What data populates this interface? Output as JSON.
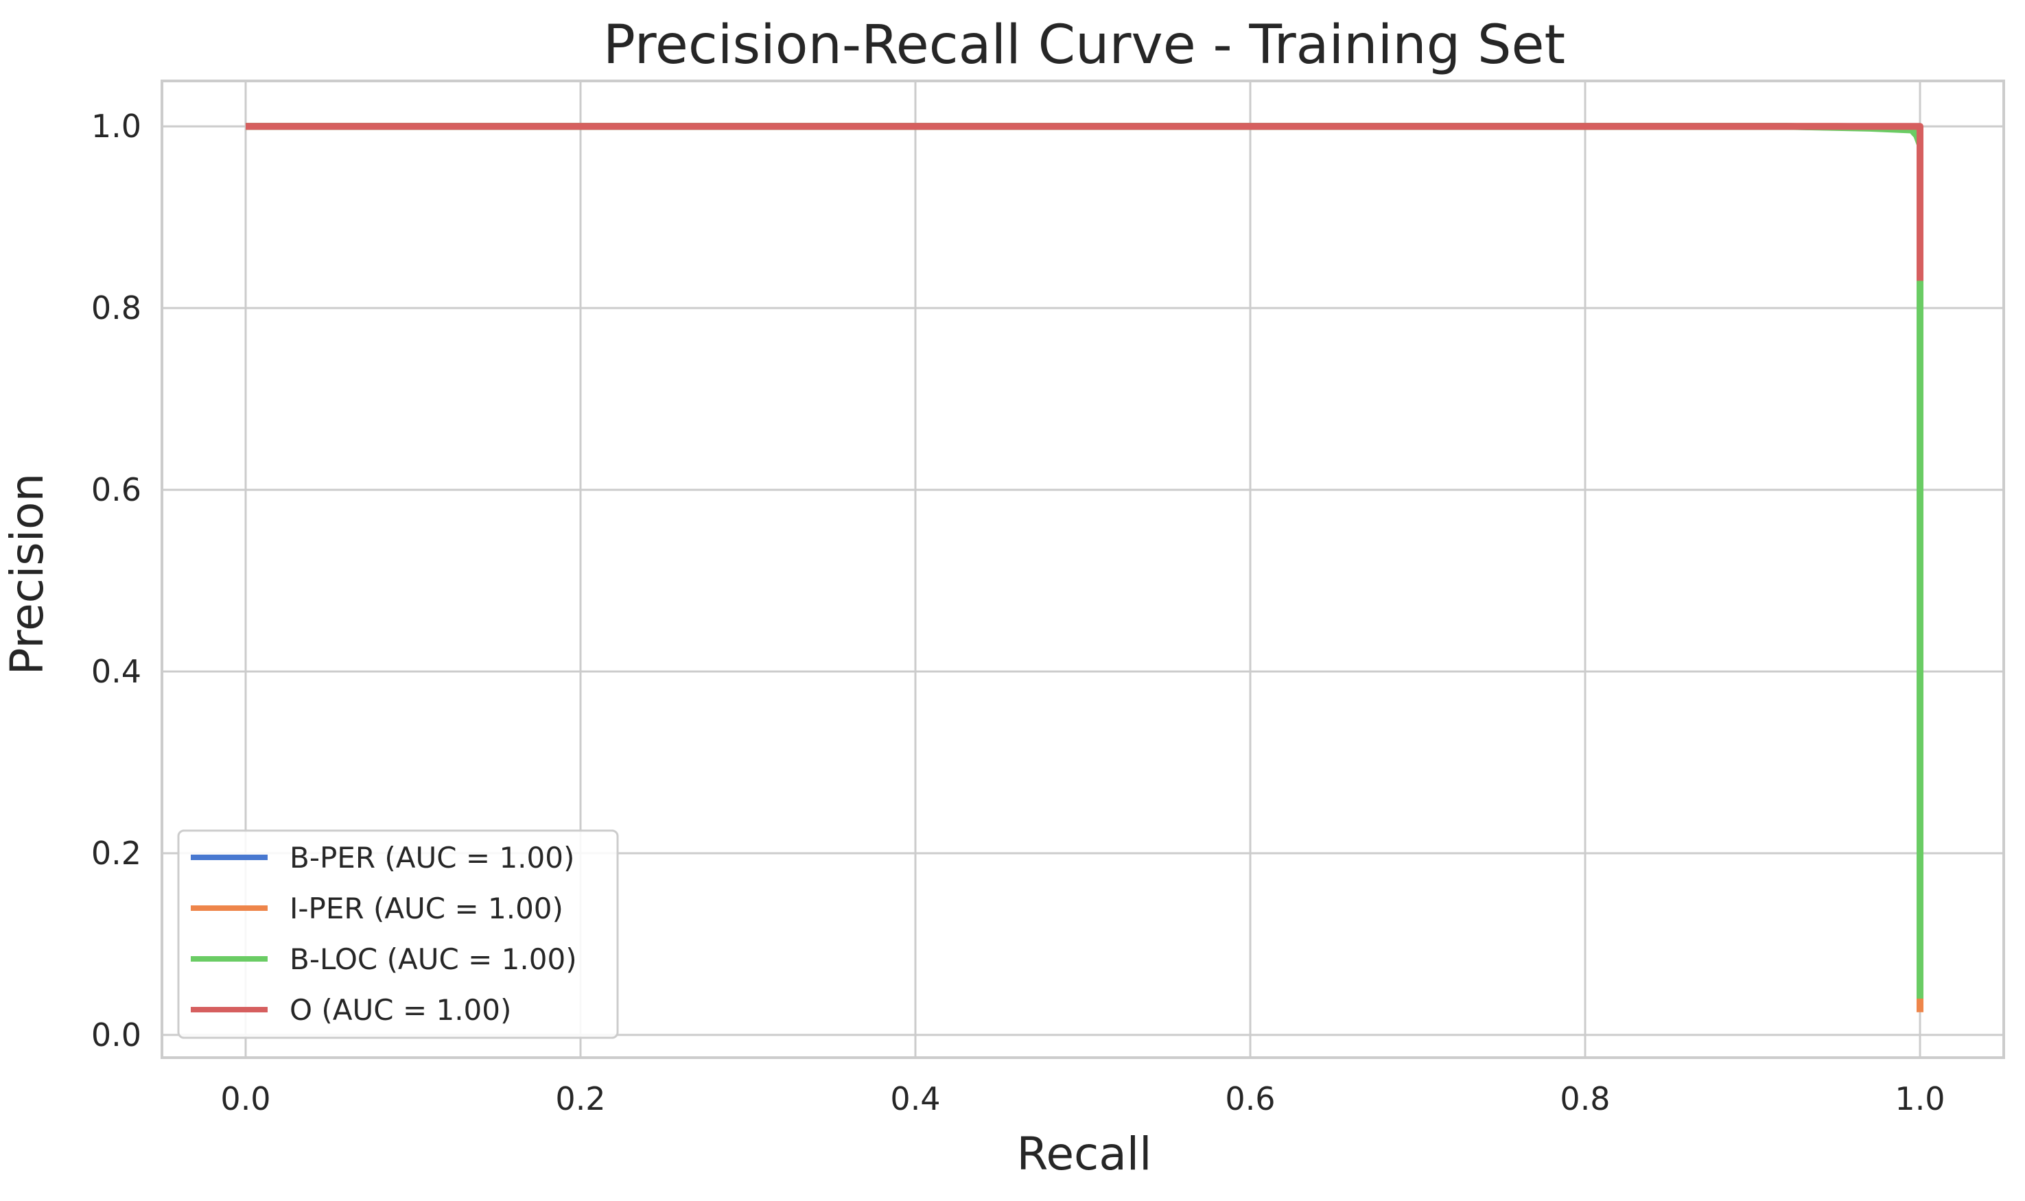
{
  "chart_data": {
    "type": "line",
    "title": "Precision-Recall Curve - Training Set",
    "xlabel": "Recall",
    "ylabel": "Precision",
    "xlim": [
      -0.05,
      1.05
    ],
    "ylim": [
      -0.025,
      1.05
    ],
    "xticks": [
      0.0,
      0.2,
      0.4,
      0.6,
      0.8,
      1.0
    ],
    "yticks": [
      0.0,
      0.2,
      0.4,
      0.6,
      0.8,
      1.0
    ],
    "xtick_labels": [
      "0.0",
      "0.2",
      "0.4",
      "0.6",
      "0.8",
      "1.0"
    ],
    "ytick_labels": [
      "0.0",
      "0.2",
      "0.4",
      "0.6",
      "0.8",
      "1.0"
    ],
    "grid": true,
    "legend_position": "lower-left",
    "series": [
      {
        "name": "B-PER (AUC = 1.00)",
        "color": "#4878d0",
        "x": [
          0.0,
          0.92,
          0.99,
          1.0,
          1.0
        ],
        "y": [
          1.0,
          1.0,
          0.998,
          0.995,
          0.95
        ]
      },
      {
        "name": "I-PER (AUC = 1.00)",
        "color": "#ee854a",
        "x": [
          0.0,
          0.95,
          1.0,
          1.0
        ],
        "y": [
          1.0,
          1.0,
          0.999,
          0.025
        ]
      },
      {
        "name": "B-LOC (AUC = 1.00)",
        "color": "#6acc64",
        "x": [
          0.0,
          0.92,
          0.97,
          0.995,
          0.998,
          1.0,
          1.0
        ],
        "y": [
          1.0,
          1.0,
          0.998,
          0.996,
          0.99,
          0.98,
          0.04
        ]
      },
      {
        "name": "O (AUC = 1.00)",
        "color": "#d65f5f",
        "x": [
          0.0,
          1.0,
          1.0
        ],
        "y": [
          1.0,
          1.0,
          0.83
        ]
      }
    ]
  }
}
